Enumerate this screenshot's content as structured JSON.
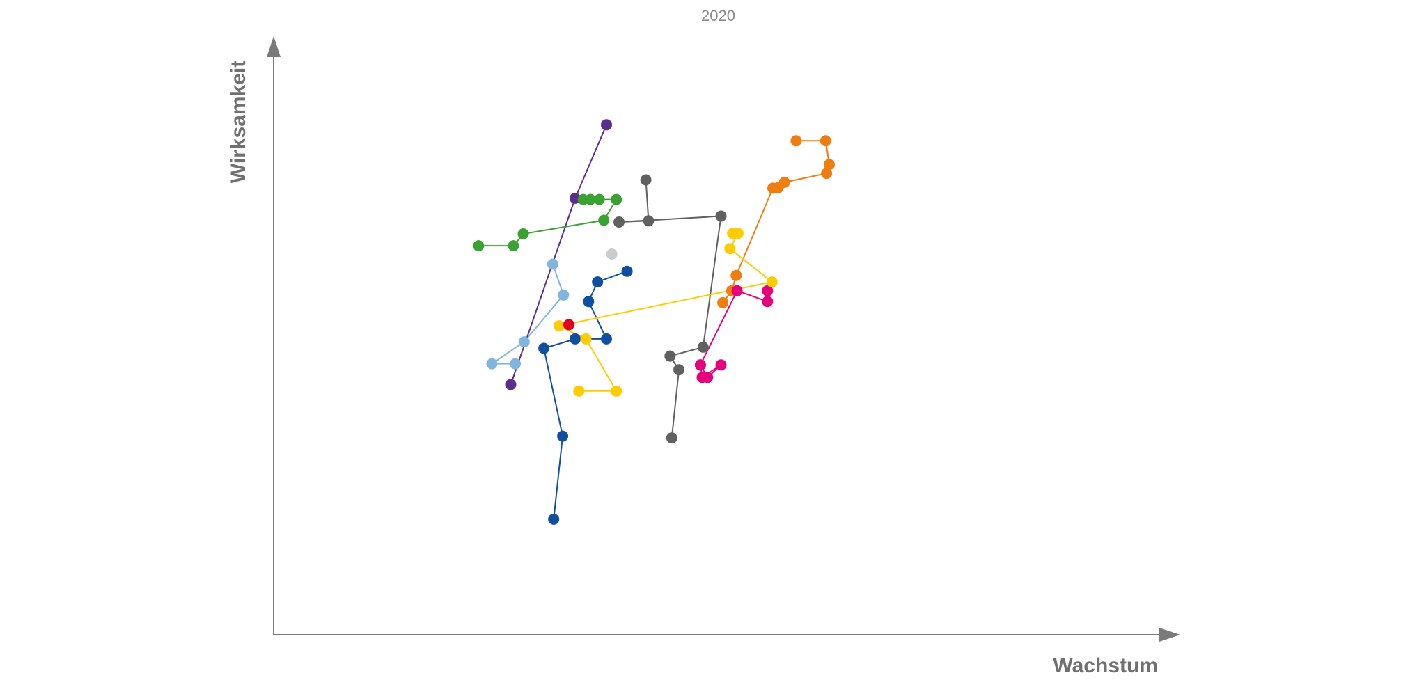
{
  "chart_data": {
    "type": "scatter",
    "title": "2020",
    "xlabel": "Wachstum",
    "ylabel": "Wirksamkeit",
    "xlim": [
      0,
      1000
    ],
    "ylim": [
      0,
      1000
    ],
    "grid": false,
    "series": [
      {
        "color": "#f07e0e",
        "points": [
          [
            502,
            560
          ],
          [
            512,
            580
          ],
          [
            517,
            606
          ],
          [
            558,
            753
          ],
          [
            564,
            754
          ],
          [
            571,
            763
          ],
          [
            618,
            778
          ],
          [
            621,
            793
          ],
          [
            617,
            833
          ],
          [
            584,
            833
          ]
        ]
      },
      {
        "color": "#606060",
        "points": [
          [
            416,
            767
          ],
          [
            419,
            698
          ],
          [
            386,
            696
          ],
          [
            500,
            706
          ],
          [
            480,
            485
          ],
          [
            443,
            470
          ],
          [
            453,
            447
          ],
          [
            445,
            332
          ]
        ]
      },
      {
        "color": "#e5007d",
        "points": [
          [
            552,
            580
          ],
          [
            552,
            562
          ],
          [
            518,
            580
          ],
          [
            477,
            455
          ],
          [
            479,
            434
          ],
          [
            500,
            455
          ],
          [
            485,
            434
          ],
          [
            477,
            455
          ]
        ]
      },
      {
        "color": "#0e4f9f",
        "points": [
          [
            313,
            195
          ],
          [
            323,
            335
          ],
          [
            302,
            483
          ],
          [
            337,
            499
          ],
          [
            372,
            499
          ],
          [
            352,
            562
          ],
          [
            362,
            595
          ],
          [
            395,
            613
          ]
        ]
      },
      {
        "color": "#80b6dd",
        "points": [
          [
            312,
            625
          ],
          [
            324,
            573
          ],
          [
            280,
            494
          ],
          [
            244,
            457
          ],
          [
            270,
            457
          ]
        ]
      },
      {
        "color": "#5b2d8c",
        "points": [
          [
            265,
            422
          ],
          [
            337,
            736
          ],
          [
            372,
            860
          ]
        ]
      },
      {
        "color": "#39a230",
        "points": [
          [
            229,
            656
          ],
          [
            268,
            656
          ],
          [
            279,
            676
          ],
          [
            369,
            699
          ],
          [
            383,
            734
          ],
          [
            364,
            734
          ],
          [
            354,
            734
          ],
          [
            346,
            734
          ]
        ]
      },
      {
        "color": "#ffcc00",
        "points": [
          [
            341,
            411
          ],
          [
            383,
            411
          ],
          [
            349,
            499
          ],
          [
            319,
            521
          ],
          [
            557,
            595
          ],
          [
            510,
            651
          ],
          [
            519,
            677
          ],
          [
            513,
            677
          ]
        ]
      },
      {
        "color": "#cccccc",
        "points": [
          [
            378,
            642
          ]
        ]
      },
      {
        "color": "#e3001b",
        "points": [
          [
            330,
            523
          ]
        ]
      }
    ]
  }
}
